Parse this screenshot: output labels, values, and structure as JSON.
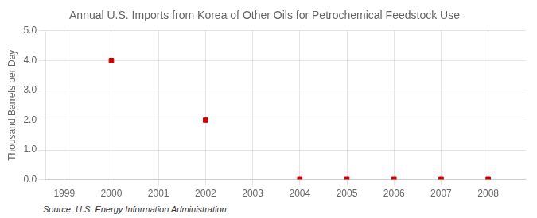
{
  "chart_data": {
    "type": "scatter",
    "title": "Annual U.S. Imports from Korea of Other Oils for Petrochemical Feedstock Use",
    "ylabel": "Thousand Barrels per Day",
    "source": "Source: U.S. Energy Information Administration",
    "x": [
      2000,
      2002,
      2004,
      2005,
      2006,
      2007,
      2008
    ],
    "values": [
      4.0,
      2.0,
      0.02,
      0.02,
      0.02,
      0.02,
      0.02
    ],
    "color": "#cc0000",
    "marker": "square",
    "xlim": [
      1998.6,
      2008.8
    ],
    "xticks": [
      1999,
      2000,
      2001,
      2002,
      2003,
      2004,
      2005,
      2006,
      2007,
      2008
    ],
    "ylim": [
      0.0,
      5.0
    ],
    "yticks": [
      {
        "value": 0.0,
        "label": "0.0"
      },
      {
        "value": 1.0,
        "label": "1.0"
      },
      {
        "value": 2.0,
        "label": "2.0"
      },
      {
        "value": 3.0,
        "label": "3.0"
      },
      {
        "value": 4.0,
        "label": "4.0"
      },
      {
        "value": 5.0,
        "label": "5.0"
      }
    ],
    "grid": true
  }
}
